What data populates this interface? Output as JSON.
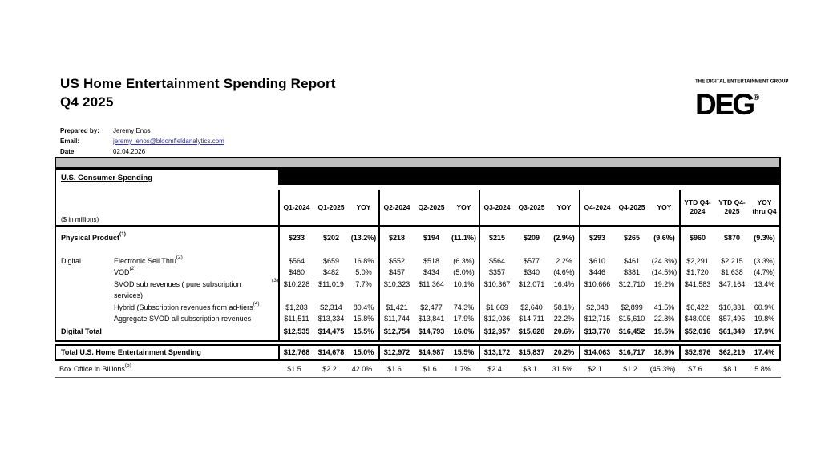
{
  "report": {
    "title_line1": "US Home Entertainment Spending Report",
    "title_line2": "Q4 2025",
    "prepared_by_label": "Prepared by:",
    "prepared_by": "Jeremy Enos",
    "email_label": "Email:",
    "email": "jeremy_enos@bloomfieldanalytics.com",
    "date_label": "Date",
    "date": "02.04.2026"
  },
  "logo": {
    "tagline": "THE DIGITAL ENTERTAINMENT GROUP",
    "acronym": "DEG",
    "registered": "®"
  },
  "colors": {
    "band_gray": "#bfbfbf",
    "header_band": "#000000",
    "link_color": "#303099"
  },
  "table": {
    "section_title": "U.S. Consumer Spending",
    "units_note": "($ in millions)",
    "columns": {
      "groups": [
        {
          "cols": [
            "Q1-2024",
            "Q1-2025",
            "YOY"
          ]
        },
        {
          "cols": [
            "Q2-2024",
            "Q2-2025",
            "YOY"
          ]
        },
        {
          "cols": [
            "Q3-2024",
            "Q3-2025",
            "YOY"
          ]
        },
        {
          "cols": [
            "Q4-2024",
            "Q4-2025",
            "YOY"
          ]
        },
        {
          "cols": [
            "YTD Q4-2024",
            "YTD Q4-2025",
            "YOY thru Q4"
          ]
        }
      ]
    },
    "rows": [
      {
        "class": "physical",
        "indent": false,
        "prefix": "",
        "label": "Physical Product",
        "sup": "(1)",
        "bold": true,
        "values": [
          "$233",
          "$202",
          "(13.2%)",
          "$218",
          "$194",
          "(11.1%)",
          "$215",
          "$209",
          "(2.9%)",
          "$293",
          "$265",
          "(9.6%)",
          "$960",
          "$870",
          "(9.3%)"
        ]
      },
      {
        "class": "sub",
        "indent": true,
        "prefix": "Digital",
        "label": "Electronic Sell Thru",
        "sup": "(2)",
        "bold": false,
        "values": [
          "$564",
          "$659",
          "16.8%",
          "$552",
          "$518",
          "(6.3%)",
          "$564",
          "$577",
          "2.2%",
          "$610",
          "$461",
          "(24.3%)",
          "$2,291",
          "$2,215",
          "(3.3%)"
        ]
      },
      {
        "class": "sub",
        "indent": true,
        "prefix": "",
        "label": "VOD",
        "sup": "(2)",
        "bold": false,
        "values": [
          "$460",
          "$482",
          "5.0%",
          "$457",
          "$434",
          "(5.0%)",
          "$357",
          "$340",
          "(4.6%)",
          "$446",
          "$381",
          "(14.5%)",
          "$1,720",
          "$1,638",
          "(4.7%)"
        ]
      },
      {
        "class": "sub",
        "indent": true,
        "prefix": "",
        "label": "SVOD sub revenues ( pure subscription services)",
        "sup": "(3)",
        "bold": false,
        "values": [
          "$10,228",
          "$11,019",
          "7.7%",
          "$10,323",
          "$11,364",
          "10.1%",
          "$10,367",
          "$12,071",
          "16.4%",
          "$10,666",
          "$12,710",
          "19.2%",
          "$41,583",
          "$47,164",
          "13.4%"
        ]
      },
      {
        "class": "sub",
        "indent": true,
        "prefix": "",
        "label": "Hybrid (Subscription revenues from ad-tiers",
        "sup": "(4)",
        "bold": false,
        "values": [
          "$1,283",
          "$2,314",
          "80.4%",
          "$1,421",
          "$2,477",
          "74.3%",
          "$1,669",
          "$2,640",
          "58.1%",
          "$2,048",
          "$2,899",
          "41.5%",
          "$6,422",
          "$10,331",
          "60.9%"
        ]
      },
      {
        "class": "sub",
        "indent": true,
        "prefix": "",
        "label": "Aggregate SVOD all subscription revenues",
        "sup": "",
        "bold": false,
        "values": [
          "$11,511",
          "$13,334",
          "15.8%",
          "$11,744",
          "$13,841",
          "17.9%",
          "$12,036",
          "$14,711",
          "22.2%",
          "$12,715",
          "$15,610",
          "22.8%",
          "$48,006",
          "$57,495",
          "19.8%"
        ]
      },
      {
        "class": "digital-total",
        "indent": false,
        "prefix": "",
        "label": "Digital Total",
        "sup": "",
        "bold": true,
        "values": [
          "$12,535",
          "$14,475",
          "15.5%",
          "$12,754",
          "$14,793",
          "16.0%",
          "$12,957",
          "$15,628",
          "20.6%",
          "$13,770",
          "$16,452",
          "19.5%",
          "$52,016",
          "$61,349",
          "17.9%"
        ]
      }
    ],
    "total_row": {
      "label": "Total U.S. Home Entertainment Spending",
      "sup": "",
      "values": [
        "$12,768",
        "$14,678",
        "15.0%",
        "$12,972",
        "$14,987",
        "15.5%",
        "$13,172",
        "$15,837",
        "20.2%",
        "$14,063",
        "$16,717",
        "18.9%",
        "$52,976",
        "$62,219",
        "17.4%"
      ]
    },
    "box_office": {
      "label": "Box Office in Billions",
      "sup": "(5)",
      "values": [
        "$1.5",
        "$2.2",
        "42.0%",
        "$1.6",
        "$1.6",
        "1.7%",
        "$2.4",
        "$3.1",
        "31.5%",
        "$2.1",
        "$1.2",
        "(45.3%)",
        "$7.6",
        "$8.1",
        "5.8%"
      ]
    }
  }
}
